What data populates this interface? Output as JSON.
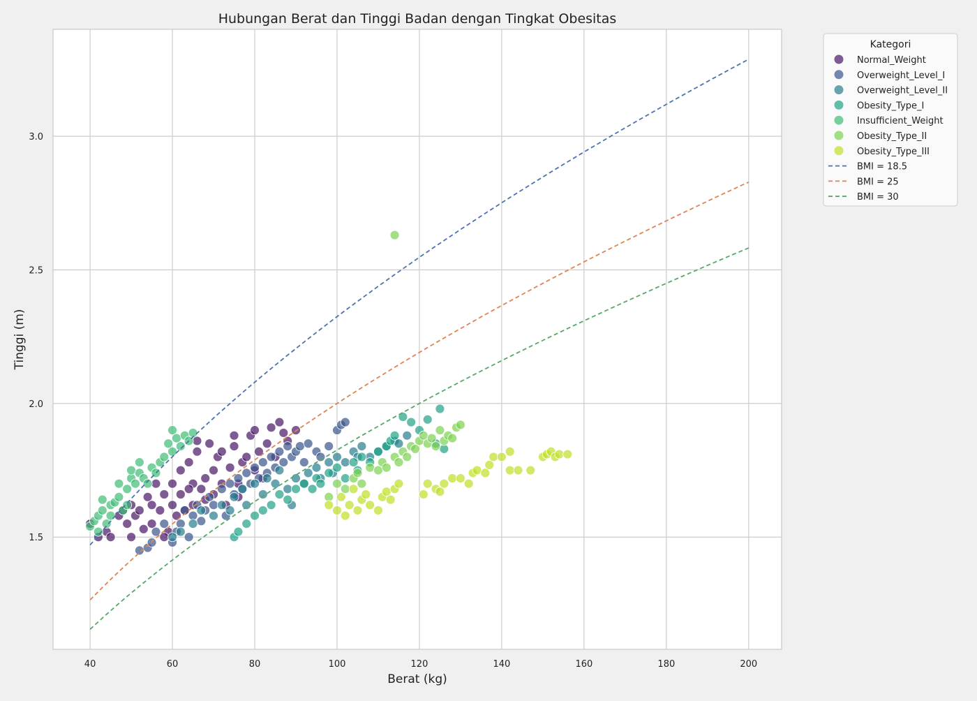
{
  "chart_data": {
    "type": "scatter",
    "title": "Hubungan Berat dan Tinggi Badan dengan Tingkat Obesitas",
    "xlabel": "Berat (kg)",
    "ylabel": "Tinggi (m)",
    "xlim": [
      31,
      208
    ],
    "ylim": [
      1.08,
      3.4
    ],
    "x_ticks": [
      40,
      60,
      80,
      100,
      120,
      140,
      160,
      180,
      200
    ],
    "y_ticks": [
      1.5,
      2.0,
      2.5,
      3.0
    ],
    "x_tick_labels": [
      "40",
      "60",
      "80",
      "100",
      "120",
      "140",
      "160",
      "180",
      "200"
    ],
    "y_tick_labels": [
      "1.5",
      "2.0",
      "2.5",
      "3.0"
    ],
    "grid": true,
    "legend": {
      "title": "Kategori",
      "placement": "outside-top-right"
    },
    "series": [
      {
        "name": "Normal_Weight",
        "color": "#481567",
        "points": [
          [
            40,
            1.55
          ],
          [
            42,
            1.5
          ],
          [
            44,
            1.52
          ],
          [
            45,
            1.5
          ],
          [
            47,
            1.58
          ],
          [
            48,
            1.6
          ],
          [
            49,
            1.55
          ],
          [
            50,
            1.62
          ],
          [
            50,
            1.5
          ],
          [
            51,
            1.58
          ],
          [
            52,
            1.6
          ],
          [
            53,
            1.53
          ],
          [
            54,
            1.65
          ],
          [
            55,
            1.62
          ],
          [
            55,
            1.55
          ],
          [
            56,
            1.7
          ],
          [
            57,
            1.6
          ],
          [
            58,
            1.66
          ],
          [
            59,
            1.52
          ],
          [
            60,
            1.7
          ],
          [
            60,
            1.62
          ],
          [
            61,
            1.58
          ],
          [
            62,
            1.75
          ],
          [
            62,
            1.66
          ],
          [
            63,
            1.6
          ],
          [
            64,
            1.78
          ],
          [
            65,
            1.7
          ],
          [
            65,
            1.62
          ],
          [
            66,
            1.82
          ],
          [
            66,
            1.86
          ],
          [
            67,
            1.68
          ],
          [
            68,
            1.72
          ],
          [
            68,
            1.64
          ],
          [
            69,
            1.85
          ],
          [
            70,
            1.75
          ],
          [
            70,
            1.66
          ],
          [
            71,
            1.8
          ],
          [
            72,
            1.7
          ],
          [
            72,
            1.82
          ],
          [
            73,
            1.62
          ],
          [
            74,
            1.76
          ],
          [
            75,
            1.84
          ],
          [
            75,
            1.88
          ],
          [
            76,
            1.7
          ],
          [
            77,
            1.78
          ],
          [
            78,
            1.8
          ],
          [
            79,
            1.88
          ],
          [
            80,
            1.9
          ],
          [
            80,
            1.75
          ],
          [
            81,
            1.82
          ],
          [
            82,
            1.72
          ],
          [
            83,
            1.85
          ],
          [
            84,
            1.91
          ],
          [
            85,
            1.8
          ],
          [
            86,
            1.93
          ],
          [
            87,
            1.89
          ],
          [
            88,
            1.86
          ],
          [
            90,
            1.9
          ],
          [
            58,
            1.5
          ],
          [
            64,
            1.68
          ],
          [
            76,
            1.65
          ]
        ]
      },
      {
        "name": "Overweight_Level_I",
        "color": "#39568c",
        "points": [
          [
            52,
            1.45
          ],
          [
            54,
            1.46
          ],
          [
            55,
            1.48
          ],
          [
            56,
            1.52
          ],
          [
            58,
            1.55
          ],
          [
            60,
            1.48
          ],
          [
            61,
            1.52
          ],
          [
            62,
            1.55
          ],
          [
            63,
            1.6
          ],
          [
            64,
            1.5
          ],
          [
            65,
            1.58
          ],
          [
            66,
            1.62
          ],
          [
            67,
            1.56
          ],
          [
            68,
            1.6
          ],
          [
            69,
            1.65
          ],
          [
            70,
            1.62
          ],
          [
            72,
            1.68
          ],
          [
            73,
            1.58
          ],
          [
            74,
            1.7
          ],
          [
            75,
            1.66
          ],
          [
            76,
            1.72
          ],
          [
            77,
            1.68
          ],
          [
            78,
            1.74
          ],
          [
            79,
            1.7
          ],
          [
            80,
            1.76
          ],
          [
            81,
            1.72
          ],
          [
            82,
            1.78
          ],
          [
            83,
            1.74
          ],
          [
            84,
            1.8
          ],
          [
            85,
            1.76
          ],
          [
            86,
            1.82
          ],
          [
            87,
            1.78
          ],
          [
            88,
            1.84
          ],
          [
            89,
            1.8
          ],
          [
            90,
            1.82
          ],
          [
            91,
            1.84
          ],
          [
            92,
            1.78
          ],
          [
            93,
            1.85
          ],
          [
            95,
            1.82
          ],
          [
            96,
            1.8
          ],
          [
            98,
            1.84
          ],
          [
            100,
            1.9
          ],
          [
            101,
            1.92
          ],
          [
            102,
            1.93
          ]
        ]
      },
      {
        "name": "Overweight_Level_II",
        "color": "#287d8e",
        "points": [
          [
            60,
            1.5
          ],
          [
            62,
            1.52
          ],
          [
            65,
            1.55
          ],
          [
            67,
            1.6
          ],
          [
            70,
            1.58
          ],
          [
            72,
            1.62
          ],
          [
            74,
            1.6
          ],
          [
            75,
            1.65
          ],
          [
            77,
            1.68
          ],
          [
            78,
            1.62
          ],
          [
            80,
            1.7
          ],
          [
            82,
            1.66
          ],
          [
            83,
            1.72
          ],
          [
            85,
            1.7
          ],
          [
            86,
            1.75
          ],
          [
            88,
            1.68
          ],
          [
            89,
            1.62
          ],
          [
            90,
            1.72
          ],
          [
            92,
            1.7
          ],
          [
            93,
            1.74
          ],
          [
            95,
            1.76
          ],
          [
            96,
            1.72
          ],
          [
            98,
            1.78
          ],
          [
            99,
            1.74
          ],
          [
            100,
            1.8
          ],
          [
            102,
            1.78
          ],
          [
            104,
            1.82
          ],
          [
            105,
            1.8
          ],
          [
            106,
            1.84
          ],
          [
            108,
            1.8
          ],
          [
            110,
            1.82
          ],
          [
            112,
            1.84
          ],
          [
            114,
            1.86
          ],
          [
            115,
            1.85
          ],
          [
            117,
            1.88
          ]
        ]
      },
      {
        "name": "Obesity_Type_I",
        "color": "#20a386",
        "points": [
          [
            75,
            1.5
          ],
          [
            76,
            1.52
          ],
          [
            78,
            1.55
          ],
          [
            80,
            1.58
          ],
          [
            82,
            1.6
          ],
          [
            84,
            1.62
          ],
          [
            86,
            1.66
          ],
          [
            88,
            1.64
          ],
          [
            90,
            1.68
          ],
          [
            92,
            1.7
          ],
          [
            94,
            1.68
          ],
          [
            95,
            1.72
          ],
          [
            96,
            1.7
          ],
          [
            98,
            1.74
          ],
          [
            100,
            1.76
          ],
          [
            102,
            1.72
          ],
          [
            104,
            1.78
          ],
          [
            105,
            1.75
          ],
          [
            106,
            1.8
          ],
          [
            108,
            1.78
          ],
          [
            110,
            1.82
          ],
          [
            112,
            1.84
          ],
          [
            113,
            1.86
          ],
          [
            114,
            1.88
          ],
          [
            116,
            1.95
          ],
          [
            118,
            1.93
          ],
          [
            120,
            1.9
          ],
          [
            122,
            1.94
          ],
          [
            124,
            1.85
          ],
          [
            125,
            1.98
          ],
          [
            126,
            1.83
          ]
        ]
      },
      {
        "name": "Insufficient_Weight",
        "color": "#3dbc74",
        "points": [
          [
            40,
            1.54
          ],
          [
            41,
            1.56
          ],
          [
            42,
            1.58
          ],
          [
            42,
            1.52
          ],
          [
            43,
            1.6
          ],
          [
            43,
            1.64
          ],
          [
            44,
            1.55
          ],
          [
            45,
            1.62
          ],
          [
            45,
            1.58
          ],
          [
            46,
            1.63
          ],
          [
            47,
            1.65
          ],
          [
            48,
            1.6
          ],
          [
            49,
            1.68
          ],
          [
            50,
            1.72
          ],
          [
            50,
            1.75
          ],
          [
            51,
            1.7
          ],
          [
            52,
            1.78
          ],
          [
            52,
            1.74
          ],
          [
            53,
            1.72
          ],
          [
            54,
            1.7
          ],
          [
            55,
            1.76
          ],
          [
            56,
            1.74
          ],
          [
            57,
            1.78
          ],
          [
            58,
            1.8
          ],
          [
            59,
            1.85
          ],
          [
            60,
            1.9
          ],
          [
            60,
            1.82
          ],
          [
            61,
            1.87
          ],
          [
            62,
            1.84
          ],
          [
            63,
            1.88
          ],
          [
            64,
            1.86
          ],
          [
            65,
            1.89
          ],
          [
            49,
            1.62
          ],
          [
            47,
            1.7
          ]
        ]
      },
      {
        "name": "Obesity_Type_II",
        "color": "#7ad151",
        "points": [
          [
            98,
            1.65
          ],
          [
            100,
            1.7
          ],
          [
            102,
            1.68
          ],
          [
            104,
            1.72
          ],
          [
            105,
            1.74
          ],
          [
            106,
            1.7
          ],
          [
            108,
            1.76
          ],
          [
            110,
            1.75
          ],
          [
            111,
            1.78
          ],
          [
            112,
            1.76
          ],
          [
            114,
            2.63
          ],
          [
            114,
            1.8
          ],
          [
            115,
            1.78
          ],
          [
            116,
            1.82
          ],
          [
            117,
            1.8
          ],
          [
            118,
            1.84
          ],
          [
            119,
            1.83
          ],
          [
            120,
            1.86
          ],
          [
            121,
            1.88
          ],
          [
            122,
            1.85
          ],
          [
            123,
            1.87
          ],
          [
            124,
            1.84
          ],
          [
            125,
            1.9
          ],
          [
            126,
            1.86
          ],
          [
            127,
            1.88
          ],
          [
            128,
            1.87
          ],
          [
            129,
            1.91
          ],
          [
            130,
            1.92
          ]
        ]
      },
      {
        "name": "Obesity_Type_III",
        "color": "#bddf26",
        "points": [
          [
            98,
            1.62
          ],
          [
            100,
            1.6
          ],
          [
            101,
            1.65
          ],
          [
            102,
            1.58
          ],
          [
            103,
            1.62
          ],
          [
            104,
            1.68
          ],
          [
            105,
            1.6
          ],
          [
            106,
            1.64
          ],
          [
            107,
            1.66
          ],
          [
            108,
            1.62
          ],
          [
            110,
            1.6
          ],
          [
            111,
            1.65
          ],
          [
            112,
            1.67
          ],
          [
            113,
            1.64
          ],
          [
            114,
            1.68
          ],
          [
            115,
            1.7
          ],
          [
            121,
            1.66
          ],
          [
            122,
            1.7
          ],
          [
            124,
            1.68
          ],
          [
            125,
            1.67
          ],
          [
            126,
            1.7
          ],
          [
            128,
            1.72
          ],
          [
            130,
            1.72
          ],
          [
            132,
            1.7
          ],
          [
            133,
            1.74
          ],
          [
            134,
            1.75
          ],
          [
            136,
            1.74
          ],
          [
            137,
            1.77
          ],
          [
            138,
            1.8
          ],
          [
            140,
            1.8
          ],
          [
            142,
            1.82
          ],
          [
            142,
            1.75
          ],
          [
            144,
            1.75
          ],
          [
            147,
            1.75
          ],
          [
            150,
            1.8
          ],
          [
            151,
            1.81
          ],
          [
            152,
            1.82
          ],
          [
            153,
            1.8
          ],
          [
            154,
            1.81
          ],
          [
            156,
            1.81
          ]
        ]
      }
    ],
    "reference_lines": [
      {
        "name": "BMI = 18.5",
        "bmi": 18.5,
        "color": "#4c72b0",
        "x_range": [
          40,
          200
        ]
      },
      {
        "name": "BMI = 25",
        "bmi": 25,
        "color": "#dd8452",
        "x_range": [
          40,
          200
        ]
      },
      {
        "name": "BMI = 30",
        "bmi": 30,
        "color": "#55a868",
        "x_range": [
          40,
          200
        ]
      }
    ]
  }
}
